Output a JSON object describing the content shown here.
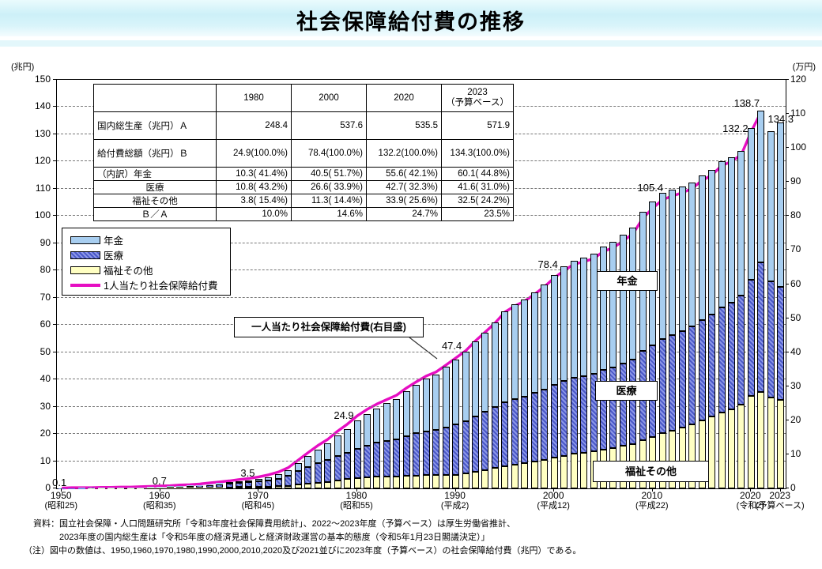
{
  "title": "社会保障給付費の推移",
  "left_axis": {
    "unit": "(兆円)",
    "min": 0,
    "max": 150,
    "step": 10
  },
  "right_axis": {
    "unit": "(万円)",
    "min": 0,
    "max": 120,
    "step": 10
  },
  "x_axis": {
    "decades": [
      {
        "year": "1950",
        "era": "(昭和25)"
      },
      {
        "year": "1960",
        "era": "(昭和35)"
      },
      {
        "year": "1970",
        "era": "(昭和45)"
      },
      {
        "year": "1980",
        "era": "(昭和55)"
      },
      {
        "year": "1990",
        "era": "(平成2)"
      },
      {
        "year": "2000",
        "era": "(平成12)"
      },
      {
        "year": "2010",
        "era": "(平成22)"
      },
      {
        "year": "2020",
        "era": "(令和2)"
      },
      {
        "year": "2023",
        "era": "(予算ベース)"
      }
    ]
  },
  "legend": {
    "items": [
      {
        "label": "年金",
        "swatch": "pension"
      },
      {
        "label": "医療",
        "swatch": "medical"
      },
      {
        "label": "福祉その他",
        "swatch": "welfare"
      },
      {
        "label": "1人当たり社会保障給付費",
        "swatch": "line"
      }
    ]
  },
  "callout": "一人当たり社会保障給付費(右目盛)",
  "area_labels": {
    "pension": "年金",
    "medical": "医療",
    "welfare": "福祉その他"
  },
  "table": {
    "col_headers": [
      "",
      "1980",
      "2000",
      "2020",
      "2023\n（予算ベース）"
    ],
    "rows": [
      {
        "label": "国内総生産（兆円）Ａ",
        "align": "left",
        "tall": true,
        "values": [
          "248.4",
          "537.6",
          "535.5",
          "571.9"
        ]
      },
      {
        "label": "給付費総額（兆円）Ｂ",
        "align": "left",
        "tall": true,
        "values": [
          "24.9(100.0%)",
          "78.4(100.0%)",
          "132.2(100.0%)",
          "134.3(100.0%)"
        ]
      },
      {
        "label": "（内訳）年金",
        "align": "left",
        "tall": false,
        "values": [
          "10.3( 41.4%)",
          "40.5( 51.7%)",
          "55.6( 42.1%)",
          "60.1( 44.8%)"
        ]
      },
      {
        "label": "医療",
        "align": "center",
        "tall": false,
        "values": [
          "10.8( 43.2%)",
          "26.6( 33.9%)",
          "42.7( 32.3%)",
          "41.6( 31.0%)"
        ]
      },
      {
        "label": "福祉その他",
        "align": "center",
        "tall": false,
        "values": [
          "3.8( 15.4%)",
          "11.3( 14.4%)",
          "33.9( 25.6%)",
          "32.5( 24.2%)"
        ]
      },
      {
        "label": "Ｂ／Ａ",
        "align": "center",
        "tall": false,
        "values": [
          "10.0%",
          "14.6%",
          "24.7%",
          "23.5%"
        ]
      }
    ]
  },
  "chart_data": {
    "type": "bar",
    "subtype": "stacked-bar-with-line",
    "title": "社会保障給付費の推移",
    "left_ylim": [
      0,
      150
    ],
    "right_ylim": [
      0,
      120
    ],
    "grid": "horizontal-dashed",
    "x": [
      1950,
      1951,
      1952,
      1953,
      1954,
      1955,
      1956,
      1957,
      1958,
      1959,
      1960,
      1961,
      1962,
      1963,
      1964,
      1965,
      1966,
      1967,
      1968,
      1969,
      1970,
      1971,
      1972,
      1973,
      1974,
      1975,
      1976,
      1977,
      1978,
      1979,
      1980,
      1981,
      1982,
      1983,
      1984,
      1985,
      1986,
      1987,
      1988,
      1989,
      1990,
      1991,
      1992,
      1993,
      1994,
      1995,
      1996,
      1997,
      1998,
      1999,
      2000,
      2001,
      2002,
      2003,
      2004,
      2005,
      2006,
      2007,
      2008,
      2009,
      2010,
      2011,
      2012,
      2013,
      2014,
      2015,
      2016,
      2017,
      2018,
      2019,
      2020,
      2021,
      2022,
      2023
    ],
    "series": [
      {
        "name": "年金",
        "unit": "兆円",
        "values": [
          0.01,
          0.01,
          0.02,
          0.02,
          0.03,
          0.03,
          0.04,
          0.05,
          0.06,
          0.07,
          0.1,
          0.12,
          0.15,
          0.19,
          0.24,
          0.32,
          0.4,
          0.49,
          0.61,
          0.74,
          0.9,
          1.15,
          1.47,
          2.01,
          2.94,
          3.96,
          4.99,
          6.02,
          7.39,
          8.72,
          10.3,
          11.55,
          12.7,
          13.79,
          14.84,
          16.42,
          17.82,
          19.22,
          20.41,
          22.17,
          24.0,
          25.4,
          27.38,
          29.17,
          31.01,
          33.28,
          34.63,
          35.67,
          37.13,
          38.7,
          40.5,
          42.0,
          43.02,
          43.5,
          44.0,
          45.34,
          46.01,
          47.2,
          48.47,
          51.21,
          53.0,
          53.76,
          53.47,
          53.03,
          52.73,
          53.08,
          53.07,
          53.61,
          53.22,
          53.15,
          55.6,
          55.8,
          55.1,
          60.1
        ]
      },
      {
        "name": "医療",
        "unit": "兆円",
        "values": [
          0.05,
          0.06,
          0.08,
          0.1,
          0.12,
          0.14,
          0.17,
          0.2,
          0.23,
          0.31,
          0.4,
          0.46,
          0.55,
          0.64,
          0.76,
          0.94,
          1.12,
          1.3,
          1.54,
          1.79,
          2.1,
          2.45,
          2.89,
          3.63,
          4.9,
          6.09,
          7.09,
          7.91,
          8.99,
          9.83,
          10.8,
          11.68,
          12.44,
          13.07,
          13.62,
          14.64,
          15.43,
          16.12,
          16.63,
          17.48,
          18.4,
          19.19,
          20.37,
          21.37,
          22.37,
          23.66,
          24.23,
          24.57,
          25.16,
          25.8,
          26.6,
          27.43,
          28.04,
          28.24,
          28.5,
          29.25,
          29.56,
          30.26,
          30.94,
          32.61,
          33.6,
          34.64,
          35.14,
          35.42,
          36.02,
          36.88,
          37.52,
          38.7,
          39.12,
          40.02,
          42.7,
          47.4,
          42.6,
          41.6
        ]
      },
      {
        "name": "福祉その他",
        "unit": "兆円",
        "values": [
          0.04,
          0.06,
          0.06,
          0.08,
          0.09,
          0.11,
          0.11,
          0.12,
          0.14,
          0.17,
          0.2,
          0.22,
          0.25,
          0.27,
          0.3,
          0.34,
          0.38,
          0.41,
          0.45,
          0.47,
          0.5,
          0.6,
          0.74,
          0.96,
          1.36,
          1.75,
          2.12,
          2.47,
          2.92,
          3.35,
          3.8,
          4.07,
          4.26,
          4.34,
          4.44,
          4.64,
          4.75,
          4.86,
          4.86,
          4.95,
          5.0,
          5.51,
          6.15,
          6.76,
          7.42,
          8.06,
          8.64,
          9.16,
          9.81,
          10.5,
          11.3,
          11.97,
          12.64,
          13.06,
          13.6,
          14.31,
          14.83,
          15.64,
          16.39,
          17.78,
          18.8,
          20.2,
          21.19,
          22.25,
          23.45,
          24.94,
          26.31,
          27.89,
          29.16,
          30.73,
          33.9,
          35.5,
          33.4,
          32.5
        ]
      }
    ],
    "line_series": {
      "name": "1人当たり社会保障給付費",
      "axis": "right",
      "unit": "万円",
      "x_start": 1950,
      "values": [
        0.1,
        0.2,
        0.2,
        0.2,
        0.3,
        0.3,
        0.4,
        0.4,
        0.5,
        0.6,
        0.7,
        0.8,
        1.0,
        1.1,
        1.3,
        1.6,
        1.9,
        2.2,
        2.6,
        2.9,
        3.4,
        4.0,
        4.8,
        6.1,
        8.3,
        10.5,
        12.6,
        14.4,
        16.8,
        18.9,
        21.3,
        23.2,
        24.8,
        26.1,
        27.4,
        29.5,
        31.3,
        33.0,
        34.2,
        36.2,
        38.3,
        40.4,
        43.3,
        45.9,
        48.6,
        51.8,
        53.6,
        55.0,
        57.0,
        59.2,
        61.8,
        64.0,
        65.8,
        66.6,
        67.5,
        69.6,
        70.7,
        72.7,
        74.8,
        79.3,
        82.3,
        84.8,
        85.9,
        86.8,
        88.1,
        90.4,
        92.0,
        94.8,
        96.0,
        98.0,
        104.8,
        110.5
      ]
    },
    "annotations": [
      {
        "year": 1950,
        "text": "0.1"
      },
      {
        "year": 1960,
        "text": "0.7"
      },
      {
        "year": 1970,
        "text": "3.5"
      },
      {
        "year": 1980,
        "text": "24.9"
      },
      {
        "year": 1990,
        "text": "47.4"
      },
      {
        "year": 2000,
        "text": "78.4"
      },
      {
        "year": 2010,
        "text": "105.4"
      },
      {
        "year": 2020,
        "text": "132.2"
      },
      {
        "year": 2021,
        "text": "138.7"
      },
      {
        "year": 2023,
        "text": "134.3"
      }
    ]
  },
  "footer": {
    "line1": "資料：国立社会保障・人口問題研究所「令和3年度社会保障費用統計」、2022～2023年度（予算ベース）は厚生労働省推計、",
    "line2": "2023年度の国内総生産は「令和5年度の経済見通しと経済財政運営の基本的態度（令和5年1月23日閣議決定）」",
    "line3": "（注）図中の数値は、1950,1960,1970,1980,1990,2000,2010,2020及び2021並びに2023年度（予算ベース）の社会保障給付費（兆円）である。"
  },
  "colors": {
    "pension": "#A8CEF0",
    "medical_dark": "#4A58C8",
    "medical_light": "#8C97E8",
    "welfare": "#FFFFC2",
    "line": "#E60EC2",
    "title_band": "#D2F1F8"
  }
}
